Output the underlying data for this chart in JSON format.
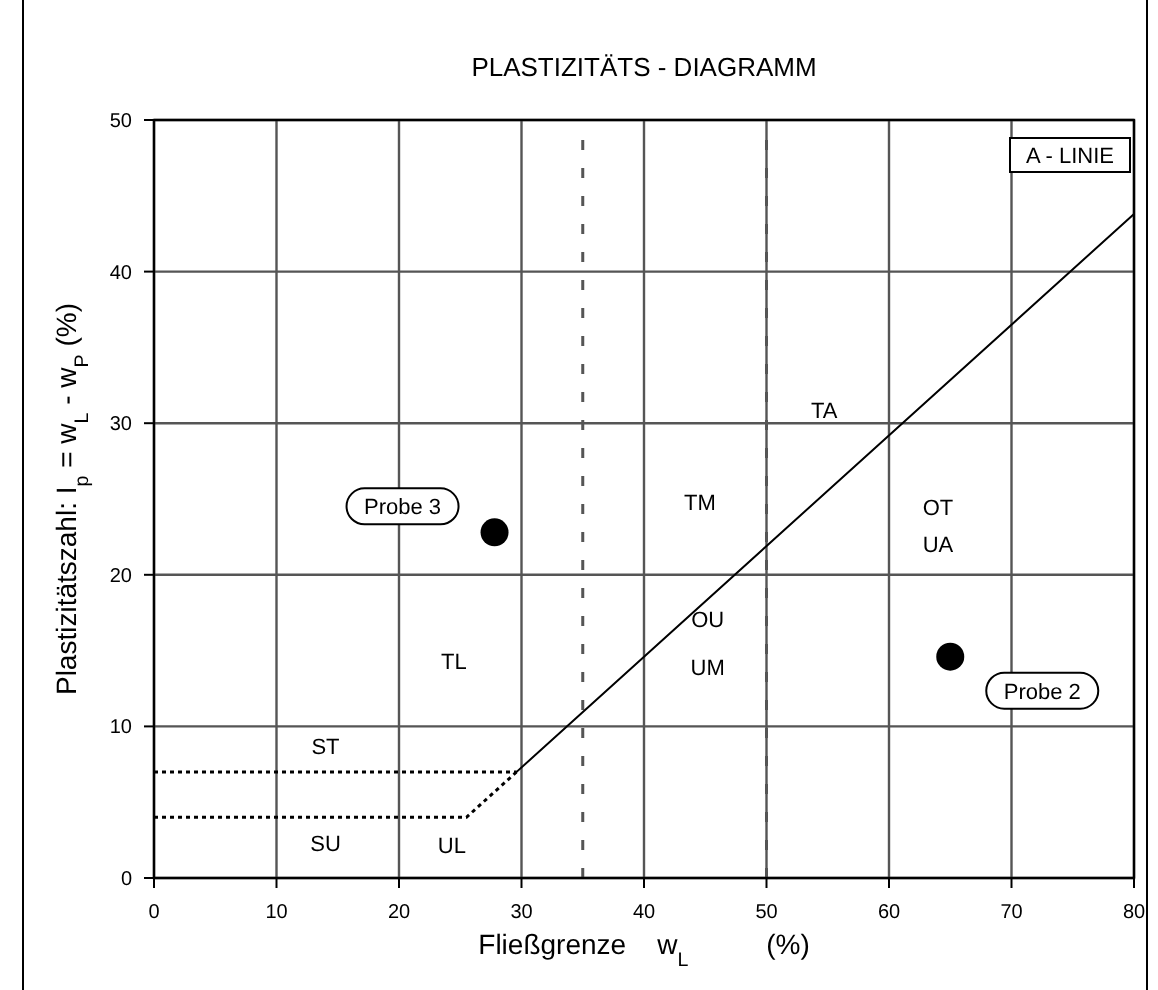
{
  "chart_data": {
    "type": "line",
    "title": "PLASTIZITÄTS - DIAGRAMM",
    "xlabel": "Fließgrenze    w$_{L}$          (%)",
    "ylabel": "Plastizitätszahl: I$_{p}$ = w$_{L}$ - w$_{P}$ (%)",
    "xlim": [
      0,
      80
    ],
    "ylim": [
      0,
      50
    ],
    "xticks": [
      0,
      10,
      20,
      30,
      40,
      50,
      60,
      70,
      80
    ],
    "yticks": [
      0,
      10,
      20,
      30,
      40,
      50
    ],
    "grid": true,
    "series": [
      {
        "name": "A - LINIE",
        "color": "#000000",
        "line_style": "solid",
        "x": [
          29.6,
          80
        ],
        "values": [
          7,
          43.8
        ]
      },
      {
        "color": "#000000",
        "line_style": "dotted",
        "x": [
          0,
          25.5,
          29.6
        ],
        "values": [
          4,
          4,
          7
        ]
      },
      {
        "color": "#000000",
        "line_style": "dotted",
        "x": [
          0,
          29.6
        ],
        "values": [
          7,
          7
        ]
      },
      {
        "name": "Probe 3",
        "type": "scatter",
        "color": "#000000",
        "marker": "circle",
        "x": [
          27.8
        ],
        "values": [
          22.8
        ]
      },
      {
        "name": "Probe 2",
        "type": "scatter",
        "color": "#000000",
        "marker": "circle",
        "x": [
          65
        ],
        "values": [
          14.6
        ]
      }
    ],
    "ref_lines": [
      {
        "axis": "x",
        "value": 35,
        "color": "#555555",
        "line_style": "dashed"
      },
      {
        "axis": "x",
        "value": 50,
        "color": "#555555",
        "line_style": "dashed"
      }
    ],
    "annotations": [
      "ST",
      "SU",
      "UL",
      "TL",
      "TM",
      "TA",
      "OU",
      "UM",
      "OT",
      "UA"
    ]
  }
}
